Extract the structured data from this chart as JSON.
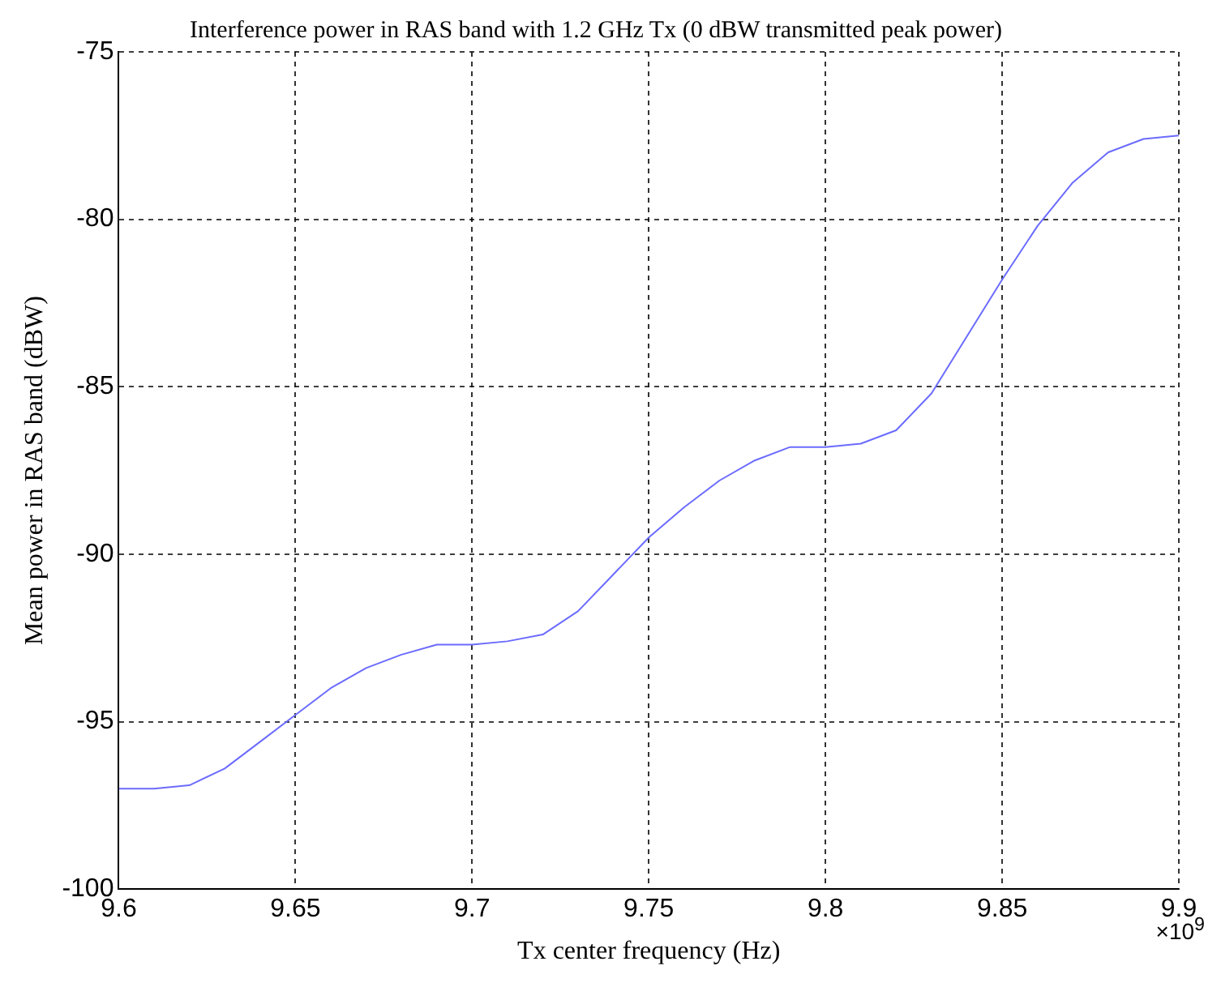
{
  "chart_data": {
    "type": "line",
    "title": "Interference power in RAS band with 1.2 GHz Tx (0 dBW transmitted peak power)",
    "xlabel": "Tx center frequency (Hz)",
    "ylabel": "Mean power in RAS band (dBW)",
    "annotations": [
      "×10$^{9}$"
    ],
    "x": [
      9.6,
      9.61,
      9.62,
      9.63,
      9.64,
      9.65,
      9.66,
      9.67,
      9.68,
      9.69,
      9.7,
      9.71,
      9.72,
      9.73,
      9.74,
      9.75,
      9.76,
      9.77,
      9.78,
      9.79,
      9.8,
      9.81,
      9.82,
      9.83,
      9.84,
      9.85,
      9.86,
      9.87,
      9.88,
      9.89,
      9.9
    ],
    "series": [
      {
        "color": "#6b6bff",
        "values": [
          -97.0,
          -97.0,
          -96.9,
          -96.4,
          -95.6,
          -94.8,
          -94.0,
          -93.4,
          -93.0,
          -92.7,
          -92.7,
          -92.6,
          -92.4,
          -91.7,
          -90.6,
          -89.5,
          -88.6,
          -87.8,
          -87.2,
          -86.8,
          -86.8,
          -86.7,
          -86.3,
          -85.2,
          -83.5,
          -81.8,
          -80.2,
          -78.9,
          -78.0,
          -77.6,
          -77.5
        ]
      }
    ],
    "xlim": [
      9.6,
      9.9
    ],
    "xticks": [
      9.6,
      9.65,
      9.7,
      9.75,
      9.8,
      9.85,
      9.9
    ],
    "ylim": [
      -100,
      -75
    ],
    "yticks": [
      -100,
      -95,
      -90,
      -85,
      -80,
      -75
    ],
    "grid": true,
    "legend": false
  }
}
